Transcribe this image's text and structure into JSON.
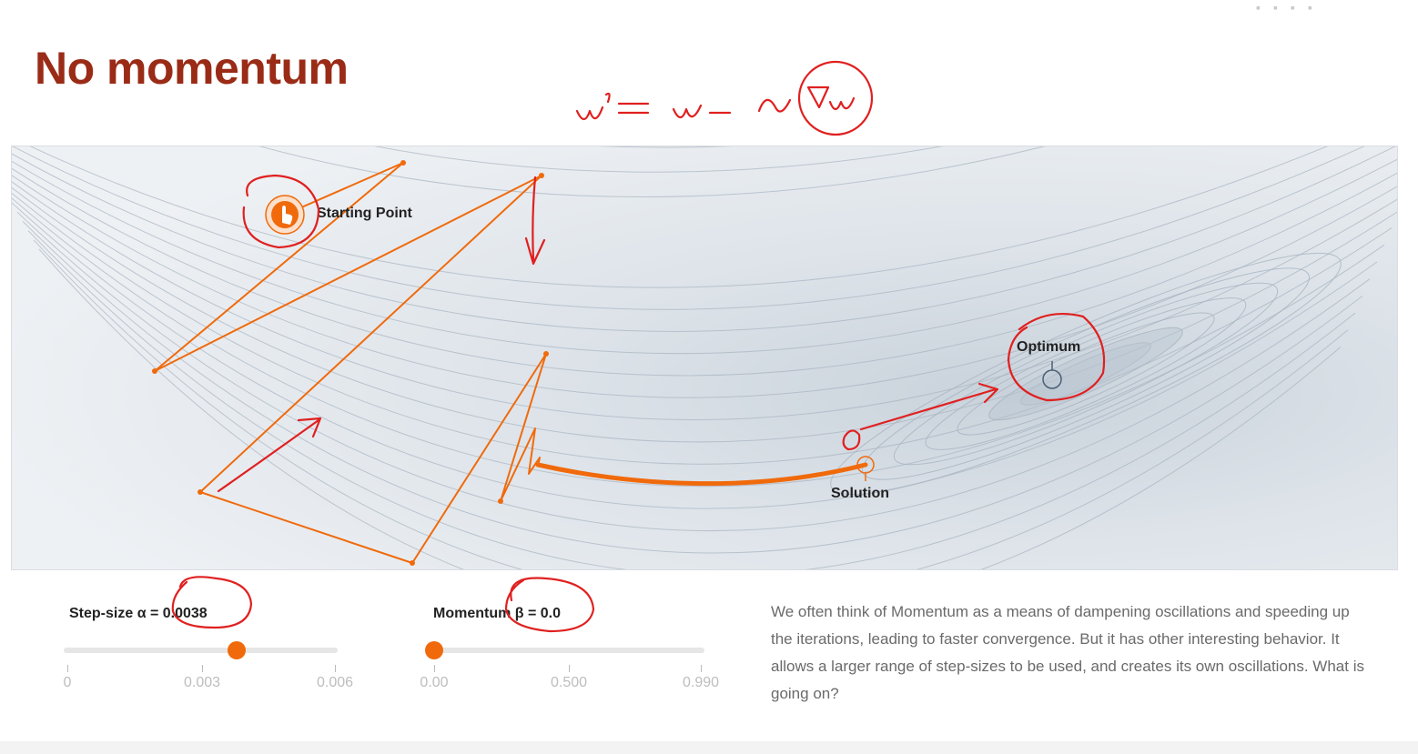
{
  "slide": {
    "title": "No momentum",
    "handwritten_formula": "w' = w - α∇w"
  },
  "viz": {
    "labels": {
      "start": "Starting Point",
      "optimum": "Optimum",
      "solution": "Solution"
    },
    "colors": {
      "path": "#f06a0c",
      "annotation": "#e02020",
      "contour": "#a8b4c0",
      "optimum_marker": "#4b5f75"
    }
  },
  "controls": {
    "step_size": {
      "label": "Step-size α = 0.0038",
      "value": 0.0038,
      "min": 0,
      "max": 0.006,
      "ticks": [
        "0",
        "0.003",
        "0.006"
      ]
    },
    "momentum": {
      "label": "Momentum β = 0.0",
      "value": 0.0,
      "min": 0,
      "max": 0.99,
      "ticks": [
        "0.00",
        "0.500",
        "0.990"
      ]
    }
  },
  "description": "We often think of Momentum as a means of dampening oscillations and speeding up the iterations, leading to faster convergence. But it has other interesting behavior. It allows a larger range of step-sizes to be used, and creates its own oscillations. What is going on?",
  "icons": {
    "start_handle": "hand-pointer-icon",
    "window_controls": "window-controls-icon"
  }
}
